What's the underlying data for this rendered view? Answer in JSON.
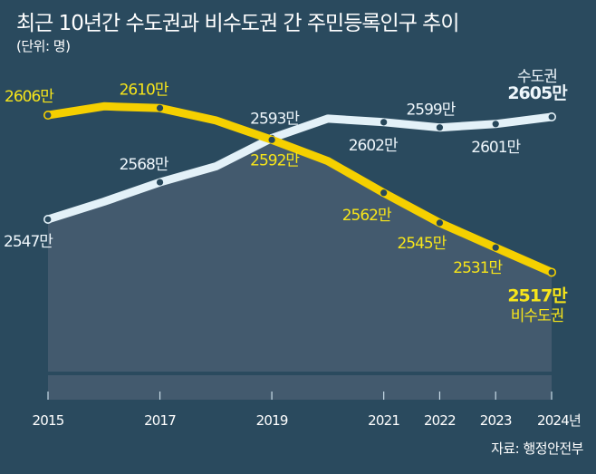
{
  "header": {
    "title": "최근 10년간 수도권과 비수도권 간 주민등록인구 추이",
    "unit": "(단위: 명)"
  },
  "source": "자료: 행정안전부",
  "colors": {
    "background": "#2a4a5e",
    "area": "#435a6e",
    "capital_line": "#e3f1f8",
    "non_capital_line": "#f5d000",
    "capital_label": "#eef6fb",
    "non_capital_label": "#f7e51a"
  },
  "chart_data": {
    "type": "line",
    "title": "최근 10년간 수도권과 비수도권 간 주민등록인구 추이",
    "ylabel": "(단위: 명)",
    "xlabel": "",
    "x": [
      2015,
      2016,
      2017,
      2018,
      2019,
      2020,
      2021,
      2022,
      2023,
      2024
    ],
    "tick_labels": [
      "2015",
      "2017",
      "2019",
      "2021",
      "2022",
      "2023",
      "2024년"
    ],
    "tick_years": [
      2015,
      2017,
      2019,
      2021,
      2022,
      2023,
      2024
    ],
    "ylim": [
      2450,
      2670
    ],
    "grid": false,
    "series": [
      {
        "name": "수도권",
        "values": [
          2547,
          2557,
          2568,
          2577,
          2593,
          2604,
          2602,
          2599,
          2601,
          2605
        ],
        "labeled": [
          true,
          false,
          true,
          false,
          true,
          false,
          true,
          true,
          true,
          true
        ],
        "labels": [
          "2547만",
          "",
          "2568만",
          "",
          "2593만",
          "",
          "2602만",
          "2599만",
          "2601만",
          "2605만"
        ]
      },
      {
        "name": "비수도권",
        "values": [
          2606,
          2611,
          2610,
          2603,
          2592,
          2580,
          2562,
          2545,
          2531,
          2517
        ],
        "labeled": [
          true,
          false,
          true,
          false,
          true,
          false,
          true,
          true,
          true,
          true
        ],
        "labels": [
          "2606만",
          "",
          "2610만",
          "",
          "2592만",
          "",
          "2562만",
          "2545만",
          "2531만",
          "2517만"
        ]
      }
    ]
  }
}
